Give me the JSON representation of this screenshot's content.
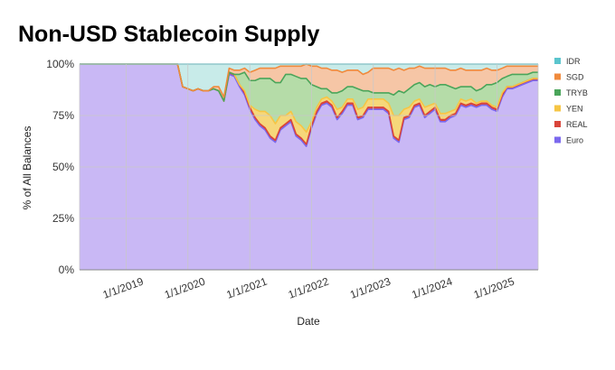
{
  "chart_data": {
    "type": "area",
    "stacked": true,
    "percent": true,
    "title": "Non-USD Stablecoin Supply",
    "xlabel": "Date",
    "ylabel": "% of All Balances",
    "ylim": [
      0,
      100
    ],
    "y_ticks": [
      "0%",
      "25%",
      "50%",
      "75%",
      "100%"
    ],
    "y_tick_values": [
      0,
      25,
      50,
      75,
      100
    ],
    "x_ticks": [
      "1/1/2019",
      "1/1/2020",
      "1/1/2021",
      "1/1/2022",
      "1/1/2023",
      "1/1/2024",
      "1/1/2025"
    ],
    "grid": true,
    "legend_position": "right",
    "dates": [
      "2018-04-01",
      "2018-07-01",
      "2018-10-01",
      "2019-01-01",
      "2019-04-01",
      "2019-07-01",
      "2019-09-01",
      "2019-10-15",
      "2019-11-01",
      "2019-12-01",
      "2020-01-01",
      "2020-02-01",
      "2020-03-01",
      "2020-04-01",
      "2020-05-01",
      "2020-06-01",
      "2020-07-01",
      "2020-08-01",
      "2020-09-01",
      "2020-10-01",
      "2020-11-01",
      "2020-12-01",
      "2021-01-01",
      "2021-02-01",
      "2021-03-01",
      "2021-04-01",
      "2021-05-01",
      "2021-06-01",
      "2021-07-01",
      "2021-08-01",
      "2021-09-01",
      "2021-10-01",
      "2021-11-01",
      "2021-12-01",
      "2022-01-01",
      "2022-02-01",
      "2022-03-01",
      "2022-04-01",
      "2022-05-01",
      "2022-06-01",
      "2022-07-01",
      "2022-08-01",
      "2022-09-01",
      "2022-10-01",
      "2022-11-01",
      "2022-12-01",
      "2023-01-01",
      "2023-02-01",
      "2023-03-01",
      "2023-04-01",
      "2023-05-01",
      "2023-06-01",
      "2023-07-01",
      "2023-08-01",
      "2023-09-01",
      "2023-10-01",
      "2023-11-01",
      "2023-12-01",
      "2024-01-01",
      "2024-02-01",
      "2024-03-01",
      "2024-04-01",
      "2024-05-01",
      "2024-06-01",
      "2024-07-01",
      "2024-08-01",
      "2024-09-01",
      "2024-10-01",
      "2024-11-01",
      "2024-12-01",
      "2025-01-01",
      "2025-02-01",
      "2025-03-01",
      "2025-04-01",
      "2025-05-01",
      "2025-06-01",
      "2025-07-01",
      "2025-08-01",
      "2025-09-01"
    ],
    "series": [
      {
        "name": "Euro",
        "color": "#c9b8f5",
        "values": [
          100,
          100,
          100,
          100,
          100,
          100,
          100,
          100,
          100,
          89,
          88,
          87,
          88,
          87,
          87,
          88,
          87,
          82,
          95,
          94,
          89,
          85,
          78,
          73,
          70,
          68,
          64,
          62,
          68,
          70,
          72,
          65,
          63,
          60,
          69,
          76,
          80,
          81,
          79,
          73,
          76,
          80,
          80,
          73,
          74,
          78,
          78,
          78,
          78,
          76,
          64,
          62,
          73,
          74,
          79,
          80,
          74,
          76,
          78,
          72,
          72,
          74,
          75,
          80,
          79,
          80,
          79,
          80,
          80,
          78,
          77,
          84,
          88,
          88,
          89,
          90,
          91,
          92,
          92
        ]
      },
      {
        "name": "REAL",
        "color": "#d9453a",
        "values": [
          0,
          0,
          0,
          0,
          0,
          0,
          0,
          0,
          0,
          0,
          0,
          0,
          0,
          0,
          0,
          0,
          0,
          0,
          1,
          1,
          1,
          1,
          1,
          1,
          1,
          1,
          1,
          1,
          1,
          1,
          1,
          1,
          1,
          1,
          1,
          1,
          1,
          1,
          1,
          1,
          1,
          1,
          1,
          1,
          1,
          1,
          1,
          1,
          1,
          1,
          1,
          1,
          1,
          1,
          1,
          1,
          1,
          1,
          1,
          1,
          1,
          1,
          1,
          1,
          1,
          1,
          1,
          1,
          1,
          1,
          1,
          1,
          1,
          1,
          1,
          1,
          1,
          1,
          1
        ]
      },
      {
        "name": "YEN",
        "color": "#f6d77a",
        "values": [
          0,
          0,
          0,
          0,
          0,
          0,
          0,
          0,
          0,
          0,
          0,
          0,
          0,
          0,
          0,
          0,
          0,
          0,
          0,
          0,
          0,
          1,
          1,
          4,
          6,
          8,
          10,
          8,
          6,
          4,
          4,
          6,
          6,
          6,
          2,
          2,
          2,
          2,
          2,
          4,
          2,
          2,
          2,
          4,
          4,
          4,
          4,
          4,
          4,
          4,
          10,
          12,
          4,
          4,
          2,
          2,
          4,
          3,
          2,
          3,
          3,
          2,
          2,
          2,
          2,
          2,
          1,
          1,
          1,
          1,
          1,
          1,
          0,
          0,
          0,
          0,
          0,
          0,
          0
        ]
      },
      {
        "name": "TRYB",
        "color": "#b5dca8",
        "values": [
          0,
          0,
          0,
          0,
          0,
          0,
          0,
          0,
          0,
          0,
          0,
          0,
          0,
          0,
          0,
          0,
          0,
          0,
          0,
          0,
          5,
          9,
          12,
          14,
          16,
          16,
          18,
          20,
          16,
          20,
          18,
          22,
          23,
          26,
          18,
          10,
          5,
          4,
          4,
          8,
          8,
          6,
          6,
          10,
          8,
          4,
          3,
          3,
          3,
          5,
          10,
          12,
          8,
          9,
          8,
          8,
          10,
          10,
          8,
          14,
          14,
          12,
          10,
          6,
          7,
          6,
          6,
          6,
          8,
          10,
          12,
          7,
          5,
          6,
          5,
          4,
          3,
          3,
          3
        ]
      },
      {
        "name": "SGD",
        "color": "#f6c6a6",
        "values": [
          0,
          0,
          0,
          0,
          0,
          0,
          0,
          0,
          0,
          0,
          0,
          0,
          0,
          0,
          0,
          1,
          2,
          2,
          2,
          2,
          2,
          2,
          4,
          5,
          5,
          5,
          5,
          7,
          8,
          4,
          4,
          5,
          6,
          7,
          9,
          10,
          10,
          10,
          11,
          11,
          9,
          8,
          8,
          9,
          8,
          9,
          12,
          12,
          12,
          12,
          12,
          11,
          11,
          10,
          8,
          8,
          9,
          8,
          9,
          8,
          8,
          8,
          9,
          9,
          8,
          8,
          10,
          9,
          8,
          7,
          6,
          5,
          5,
          4,
          4,
          4,
          4,
          3,
          3
        ]
      },
      {
        "name": "IDR",
        "color": "#c8ebe9",
        "values": [
          0,
          0,
          0,
          0,
          0,
          0,
          0,
          0,
          0,
          11,
          12,
          13,
          12,
          13,
          13,
          11,
          11,
          16,
          2,
          3,
          3,
          2,
          4,
          3,
          2,
          2,
          2,
          2,
          1,
          1,
          1,
          1,
          1,
          0,
          1,
          1,
          2,
          2,
          3,
          3,
          4,
          3,
          3,
          3,
          5,
          4,
          2,
          2,
          2,
          2,
          3,
          2,
          3,
          2,
          2,
          1,
          2,
          2,
          2,
          2,
          2,
          3,
          3,
          2,
          3,
          3,
          3,
          3,
          2,
          3,
          3,
          2,
          1,
          1,
          1,
          1,
          1,
          1,
          1
        ]
      }
    ]
  },
  "legend": {
    "items": [
      {
        "label": "IDR",
        "color": "#5bc5cd"
      },
      {
        "label": "SGD",
        "color": "#f08a3c"
      },
      {
        "label": "TRYB",
        "color": "#4aa55a"
      },
      {
        "label": "YEN",
        "color": "#f6c544"
      },
      {
        "label": "REAL",
        "color": "#d9453a"
      },
      {
        "label": "Euro",
        "color": "#7b68ee"
      }
    ]
  },
  "line_colors": [
    "#7b68ee",
    "#d9453a",
    "#f6c544",
    "#4aa55a",
    "#f08a3c",
    "#5bc5cd"
  ],
  "background": "#ffffff",
  "grid_color": "#c8c8c8"
}
